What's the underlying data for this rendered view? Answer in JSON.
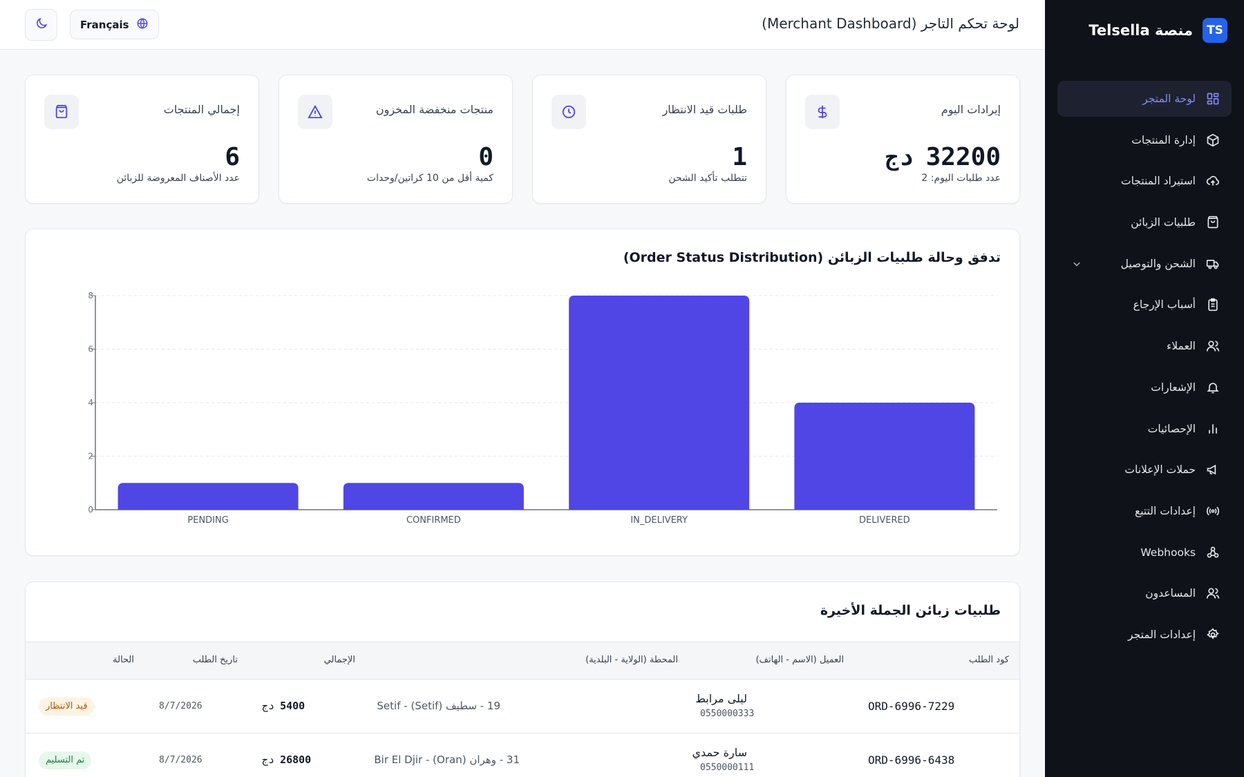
{
  "app": {
    "brand_logo": "TS",
    "brand_name": "منصة Telsella",
    "page_title": "لوحة تحكم التاجر (Merchant Dashboard)",
    "language_button": "Français",
    "accent": "#4f46e5"
  },
  "sidebar": {
    "items": [
      {
        "label": "لوحة المتجر",
        "icon": "dashboard-icon",
        "active": true
      },
      {
        "label": "إدارة المنتجات",
        "icon": "box-icon"
      },
      {
        "label": "استيراد المنتجات",
        "icon": "cloud-upload-icon"
      },
      {
        "label": "طلبيات الزبائن",
        "icon": "shopping-bag-icon"
      },
      {
        "label": "الشحن والتوصيل",
        "icon": "truck-icon",
        "expandable": true
      },
      {
        "label": "أسباب الإرجاع",
        "icon": "clipboard-icon"
      },
      {
        "label": "العملاء",
        "icon": "users-icon"
      },
      {
        "label": "الإشعارات",
        "icon": "bell-icon"
      },
      {
        "label": "الإحصائيات",
        "icon": "bar-chart-icon"
      },
      {
        "label": "حملات الإعلانات",
        "icon": "megaphone-icon"
      },
      {
        "label": "إعدادات التتبع",
        "icon": "broadcast-icon"
      },
      {
        "label": "Webhooks",
        "icon": "webhook-icon"
      },
      {
        "label": "المساعدون",
        "icon": "users-icon"
      },
      {
        "label": "إعدادات المتجر",
        "icon": "gear-icon"
      }
    ]
  },
  "stats": [
    {
      "label": "إيرادات اليوم",
      "value": "32200",
      "currency": "دج",
      "sub": "عدد طلبات اليوم: 2",
      "icon": "dollar-icon"
    },
    {
      "label": "طلبات قيد الانتظار",
      "value": "1",
      "currency": "",
      "sub": "تتطلب تأكيد الشحن",
      "icon": "clock-icon"
    },
    {
      "label": "منتجات منخفضة المخزون",
      "value": "0",
      "currency": "",
      "sub": "كمية أقل من 10 كراتين/وحدات",
      "icon": "warning-icon"
    },
    {
      "label": "إجمالي المنتجات",
      "value": "6",
      "currency": "",
      "sub": "عدد الأصناف المعروضة للزبائن",
      "icon": "bag-icon"
    }
  ],
  "chart_data": {
    "type": "bar",
    "title": "تدفق وحالة طلبيات الزبائن (Order Status Distribution)",
    "categories": [
      "PENDING",
      "CONFIRMED",
      "IN_DELIVERY",
      "DELIVERED"
    ],
    "values": [
      1,
      1,
      8,
      4
    ],
    "ylim": [
      0,
      8
    ],
    "yticks": [
      0,
      2,
      4,
      6,
      8
    ],
    "grid": true,
    "bar_color": "#4f46e5"
  },
  "orders": {
    "title": "طلبيات زبائن الجملة الأخيرة",
    "columns": {
      "code": "كود الطلب",
      "customer": "العميل (الاسم - الهاتف)",
      "station": "المحطة (الولاية - البلدية)",
      "total": "الإجمالي",
      "date": "تاريخ الطلب",
      "status": "الحالة"
    },
    "rows": [
      {
        "code": "ORD-6996-7229",
        "name": "ليلى مرابط",
        "phone": "0550000333",
        "station": "19 - سطيف (Setif) - Setif",
        "total": "5400",
        "currency": "دج",
        "date": "8/7/2026",
        "status": "قيد الانتظار",
        "status_type": "pending"
      },
      {
        "code": "ORD-6996-6438",
        "name": "سارة حمدي",
        "phone": "0550000111",
        "station": "31 - وهران (Oran) - Bir El Djir",
        "total": "26800",
        "currency": "دج",
        "date": "8/7/2026",
        "status": "تم التسليم",
        "status_type": "delivered"
      }
    ]
  }
}
